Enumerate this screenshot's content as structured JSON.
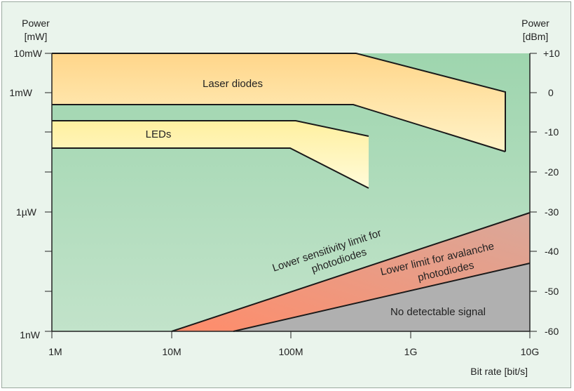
{
  "left_axis": {
    "title_line1": "Power",
    "title_line2": "[mW]",
    "labels": [
      "10mW",
      "1mW",
      "1µW",
      "1nW"
    ]
  },
  "right_axis": {
    "title_line1": "Power",
    "title_line2": "[dBm]",
    "labels": [
      "+10",
      "0",
      "-10",
      "-20",
      "-30",
      "-40",
      "-50",
      "-60"
    ]
  },
  "x_axis": {
    "labels": [
      "1M",
      "10M",
      "100M",
      "1G",
      "10G"
    ],
    "title": "Bit rate [bit/s]"
  },
  "regions": {
    "laser_diodes": "Laser diodes",
    "leds": "LEDs",
    "no_signal": "No detectable signal"
  },
  "limits": {
    "photodiode_line1": "Lower sensitivity limit for",
    "photodiode_line2": "photodiodes",
    "avalanche_line1": "Lower limit for avalanche",
    "avalanche_line2": "photodiodes"
  },
  "colors": {
    "plot_bg": "#a9d9b4",
    "laser_fill": "#ffd98c",
    "led_fill": "#fff2a0",
    "gap_fill": "#f3a184",
    "no_signal_fill": "#b3b3b3",
    "line": "#1a1a1a"
  }
}
